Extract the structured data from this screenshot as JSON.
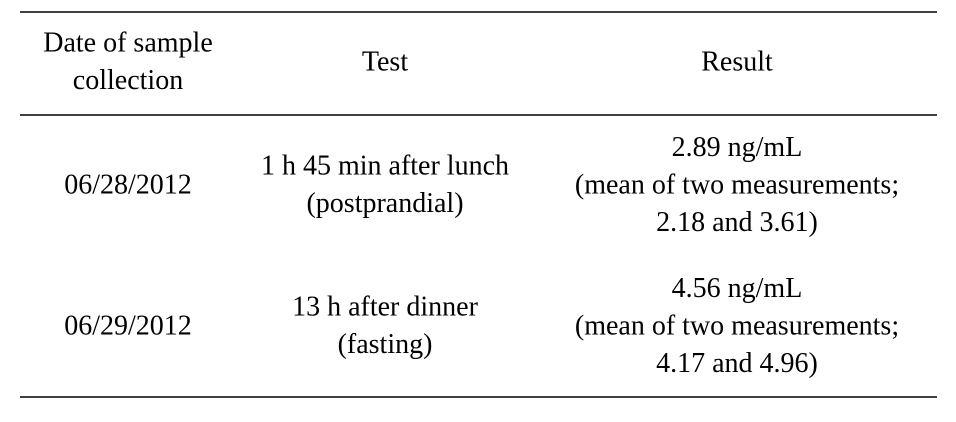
{
  "table": {
    "header": [
      [
        "Date of sample",
        "collection"
      ],
      [
        "Test"
      ],
      [
        "Result"
      ]
    ],
    "rows": [
      [
        [
          "06/28/2012"
        ],
        [
          "1 h 45 min after lunch",
          "(postprandial)"
        ],
        [
          "2.89 ng/mL",
          "(mean of two measurements;",
          "2.18 and 3.61)"
        ]
      ],
      [
        [
          "06/29/2012"
        ],
        [
          "13 h after dinner",
          "(fasting)"
        ],
        [
          "4.56 ng/mL",
          "(mean of two measurements;",
          "4.17 and 4.96)"
        ]
      ]
    ]
  }
}
